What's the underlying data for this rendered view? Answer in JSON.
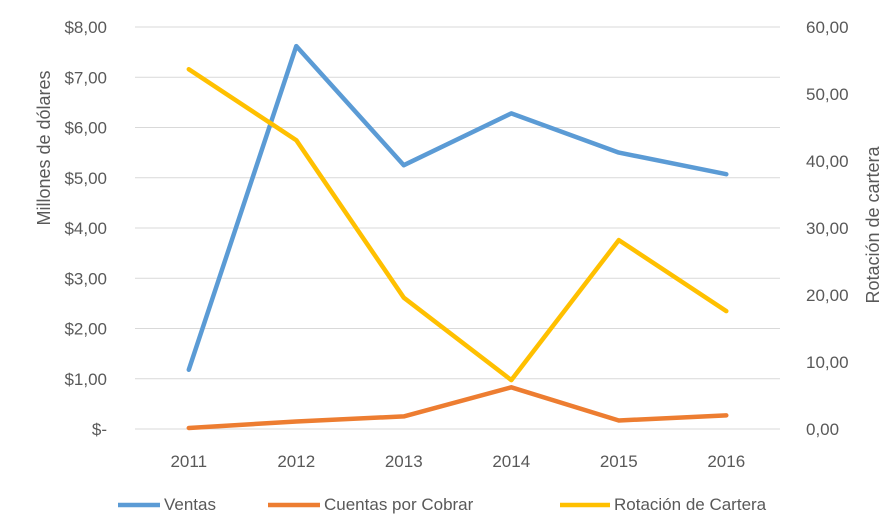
{
  "chart_data": {
    "type": "line",
    "title": "",
    "categories": [
      "2011",
      "2012",
      "2013",
      "2014",
      "2015",
      "2016"
    ],
    "y_left": {
      "label": "Millones de dólares",
      "range": [
        0,
        8
      ],
      "ticks": [
        0,
        1,
        2,
        3,
        4,
        5,
        6,
        7,
        8
      ],
      "tick_labels": [
        "$-",
        "$1,00",
        "$2,00",
        "$3,00",
        "$4,00",
        "$5,00",
        "$6,00",
        "$7,00",
        "$8,00"
      ]
    },
    "y_right": {
      "label": "Rotación de cartera",
      "range": [
        0,
        60
      ],
      "ticks": [
        0,
        10,
        20,
        30,
        40,
        50,
        60
      ],
      "tick_labels": [
        "0,00",
        "10,00",
        "20,00",
        "30,00",
        "40,00",
        "50,00",
        "60,00"
      ]
    },
    "series": [
      {
        "name": "Ventas",
        "axis": "left",
        "color": "#5b9bd5",
        "values": [
          1.18,
          7.62,
          5.25,
          6.28,
          5.5,
          5.07
        ]
      },
      {
        "name": "Cuentas por Cobrar",
        "axis": "left",
        "color": "#ed7d31",
        "values": [
          0.02,
          0.15,
          0.25,
          0.83,
          0.17,
          0.27
        ]
      },
      {
        "name": "Rotación de Cartera",
        "axis": "right",
        "color": "#ffc000",
        "values": [
          53.7,
          43.1,
          19.6,
          7.3,
          28.2,
          17.6
        ]
      }
    ],
    "grid": true,
    "legend_position": "bottom"
  }
}
